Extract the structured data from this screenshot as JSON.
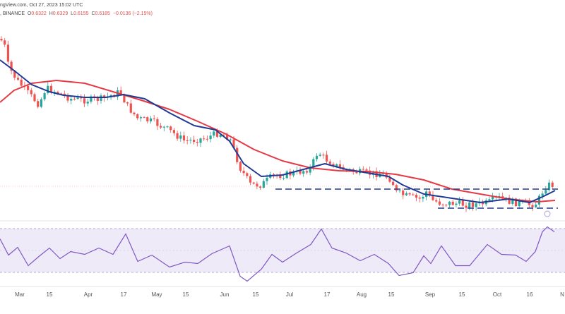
{
  "header": {
    "line1": "ngView.com, Oct 27, 2023 15:02 UTC",
    "symbol_suffix": ", BINANCE",
    "open_label": "O",
    "open": "0.6322",
    "high_label": "H",
    "high": "0.6329",
    "low_label": "L",
    "low": "0.6155",
    "close_label": "C",
    "close": "0.6185",
    "change": "−0.0136 (−2.15%)"
  },
  "colors": {
    "up": "#26a69a",
    "down": "#ef5350",
    "ma_fast": "#1f3a93",
    "ma_slow": "#e63946",
    "rsi": "#7e57c2",
    "rsi_band": "#efeaf8",
    "level": "#1f3a93"
  },
  "chart_data": [
    {
      "type": "candlestick",
      "panel": "price",
      "series": [
        {
          "name": "",
          "style": "candles"
        },
        {
          "name": "",
          "style": "line",
          "color": "#1f3a93"
        },
        {
          "name": "",
          "style": "line",
          "color": "#e63946"
        }
      ],
      "annotations": [
        "dashed horizontal level (upper)",
        "dashed horizontal level (lower)"
      ]
    },
    {
      "type": "line",
      "panel": "rsi",
      "series": [
        {
          "name": "",
          "color": "#7e57c2"
        }
      ],
      "band": "shaded overbought/oversold range"
    }
  ],
  "x_axis": {
    "ticks": [
      "Mar",
      "15",
      "Apr",
      "17",
      "May",
      "15",
      "Jun",
      "15",
      "Jul",
      "17",
      "Aug",
      "15",
      "Sep",
      "15",
      "Oct",
      "16",
      "N"
    ]
  }
}
